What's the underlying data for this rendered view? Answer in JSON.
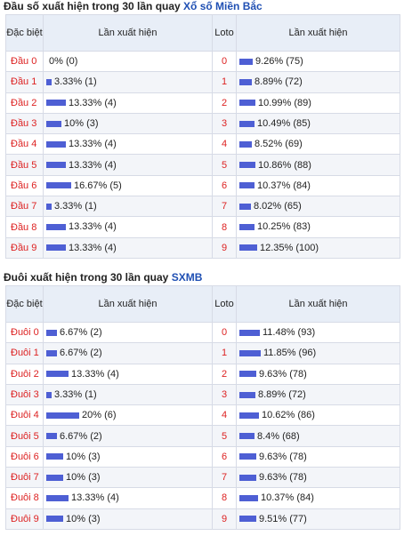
{
  "table1": {
    "title_prefix": "Đầu số xuất hiện trong 30 lần quay ",
    "title_link": "Xổ số Miền Bắc",
    "headers": {
      "c1": "Đặc biệt",
      "c2": "Lần xuất hiện",
      "c3": "Loto",
      "c4": "Lần xuất hiện"
    },
    "rows": [
      {
        "label": "Đầu 0",
        "db_pct": "0% (0)",
        "db_frac": 0.0,
        "loto": "0",
        "loto_pct": "9.26% (75)",
        "loto_frac": 0.75
      },
      {
        "label": "Đầu 1",
        "db_pct": "3.33% (1)",
        "db_frac": 0.2,
        "loto": "1",
        "loto_pct": "8.89% (72)",
        "loto_frac": 0.72
      },
      {
        "label": "Đầu 2",
        "db_pct": "13.33% (4)",
        "db_frac": 0.8,
        "loto": "2",
        "loto_pct": "10.99% (89)",
        "loto_frac": 0.89
      },
      {
        "label": "Đầu 3",
        "db_pct": "10% (3)",
        "db_frac": 0.6,
        "loto": "3",
        "loto_pct": "10.49% (85)",
        "loto_frac": 0.85
      },
      {
        "label": "Đầu 4",
        "db_pct": "13.33% (4)",
        "db_frac": 0.8,
        "loto": "4",
        "loto_pct": "8.52% (69)",
        "loto_frac": 0.69
      },
      {
        "label": "Đầu 5",
        "db_pct": "13.33% (4)",
        "db_frac": 0.8,
        "loto": "5",
        "loto_pct": "10.86% (88)",
        "loto_frac": 0.88
      },
      {
        "label": "Đầu 6",
        "db_pct": "16.67% (5)",
        "db_frac": 1.0,
        "loto": "6",
        "loto_pct": "10.37% (84)",
        "loto_frac": 0.84
      },
      {
        "label": "Đầu 7",
        "db_pct": "3.33% (1)",
        "db_frac": 0.2,
        "loto": "7",
        "loto_pct": "8.02% (65)",
        "loto_frac": 0.65
      },
      {
        "label": "Đầu 8",
        "db_pct": "13.33% (4)",
        "db_frac": 0.8,
        "loto": "8",
        "loto_pct": "10.25% (83)",
        "loto_frac": 0.83
      },
      {
        "label": "Đầu 9",
        "db_pct": "13.33% (4)",
        "db_frac": 0.8,
        "loto": "9",
        "loto_pct": "12.35% (100)",
        "loto_frac": 1.0
      }
    ]
  },
  "table2": {
    "title_prefix": "Đuôi xuất hiện trong 30 lần quay ",
    "title_link": "SXMB",
    "headers": {
      "c1": "Đặc biệt",
      "c2": "Lần xuất hiện",
      "c3": "Loto",
      "c4": "Lần xuất hiện"
    },
    "rows": [
      {
        "label": "Đuôi 0",
        "db_pct": "6.67% (2)",
        "db_frac": 0.33,
        "loto": "0",
        "loto_pct": "11.48% (93)",
        "loto_frac": 0.97
      },
      {
        "label": "Đuôi 1",
        "db_pct": "6.67% (2)",
        "db_frac": 0.33,
        "loto": "1",
        "loto_pct": "11.85% (96)",
        "loto_frac": 1.0
      },
      {
        "label": "Đuôi 2",
        "db_pct": "13.33% (4)",
        "db_frac": 0.67,
        "loto": "2",
        "loto_pct": "9.63% (78)",
        "loto_frac": 0.81
      },
      {
        "label": "Đuôi 3",
        "db_pct": "3.33% (1)",
        "db_frac": 0.17,
        "loto": "3",
        "loto_pct": "8.89% (72)",
        "loto_frac": 0.75
      },
      {
        "label": "Đuôi 4",
        "db_pct": "20% (6)",
        "db_frac": 1.0,
        "loto": "4",
        "loto_pct": "10.62% (86)",
        "loto_frac": 0.9
      },
      {
        "label": "Đuôi 5",
        "db_pct": "6.67% (2)",
        "db_frac": 0.33,
        "loto": "5",
        "loto_pct": "8.4% (68)",
        "loto_frac": 0.71
      },
      {
        "label": "Đuôi 6",
        "db_pct": "10% (3)",
        "db_frac": 0.5,
        "loto": "6",
        "loto_pct": "9.63% (78)",
        "loto_frac": 0.81
      },
      {
        "label": "Đuôi 7",
        "db_pct": "10% (3)",
        "db_frac": 0.5,
        "loto": "7",
        "loto_pct": "9.63% (78)",
        "loto_frac": 0.81
      },
      {
        "label": "Đuôi 8",
        "db_pct": "13.33% (4)",
        "db_frac": 0.67,
        "loto": "8",
        "loto_pct": "10.37% (84)",
        "loto_frac": 0.88
      },
      {
        "label": "Đuôi 9",
        "db_pct": "10% (3)",
        "db_frac": 0.5,
        "loto": "9",
        "loto_pct": "9.51% (77)",
        "loto_frac": 0.8
      }
    ]
  },
  "colors": {
    "bar": "#4e5fd4",
    "label_red": "#dd2222",
    "link": "#1f4fb3",
    "header_bg": "#e8eef7"
  }
}
